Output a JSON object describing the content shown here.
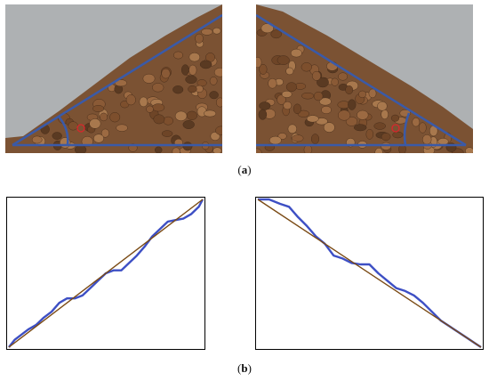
{
  "figure": {
    "caption_a": {
      "open": "(",
      "letter": "a",
      "close": ")"
    },
    "caption_b": {
      "open": "(",
      "letter": "b",
      "close": ")"
    }
  },
  "photos": [
    {
      "id": "left",
      "slope_direction": "rising-left-to-right"
    },
    {
      "id": "right",
      "slope_direction": "falling-left-to-right"
    }
  ],
  "colors": {
    "background_wall": "#aeb1b3",
    "grain": "#8a5a36",
    "annotation_line": "#3a5aa8",
    "profile_blue": "#3d4fc4",
    "fit_brown": "#7a4a14",
    "marker_red": "#d8262c"
  },
  "chart_data": [
    {
      "type": "line",
      "title": "",
      "series": [
        {
          "name": "",
          "x": [
            0,
            0.03,
            0.06,
            0.1,
            0.14,
            0.18,
            0.22,
            0.26,
            0.3,
            0.34,
            0.38,
            0.42,
            0.46,
            0.5,
            0.54,
            0.58,
            0.62,
            0.66,
            0.7,
            0.74,
            0.78,
            0.82,
            0.86,
            0.9,
            0.94,
            0.98,
            1.0
          ],
          "y": [
            0,
            0.05,
            0.08,
            0.12,
            0.15,
            0.2,
            0.24,
            0.3,
            0.33,
            0.33,
            0.35,
            0.4,
            0.45,
            0.5,
            0.52,
            0.52,
            0.57,
            0.62,
            0.68,
            0.75,
            0.8,
            0.85,
            0.86,
            0.87,
            0.9,
            0.95,
            1.0
          ]
        },
        {
          "name": "",
          "x": [
            0,
            1
          ],
          "y": [
            0,
            1
          ]
        }
      ]
    },
    {
      "type": "line",
      "title": "",
      "series": [
        {
          "name": "",
          "x": [
            0,
            0.05,
            0.1,
            0.14,
            0.18,
            0.22,
            0.26,
            0.3,
            0.34,
            0.38,
            0.42,
            0.46,
            0.5,
            0.54,
            0.58,
            0.62,
            0.66,
            0.7,
            0.74,
            0.78,
            0.82,
            0.86,
            0.9,
            0.94,
            0.98,
            1.0
          ],
          "y": [
            1,
            1,
            0.97,
            0.95,
            0.88,
            0.82,
            0.75,
            0.7,
            0.62,
            0.6,
            0.57,
            0.56,
            0.56,
            0.5,
            0.45,
            0.4,
            0.38,
            0.35,
            0.3,
            0.24,
            0.18,
            0.14,
            0.1,
            0.06,
            0.02,
            0
          ]
        },
        {
          "name": "",
          "x": [
            0,
            1
          ],
          "y": [
            1,
            0
          ]
        }
      ]
    }
  ]
}
